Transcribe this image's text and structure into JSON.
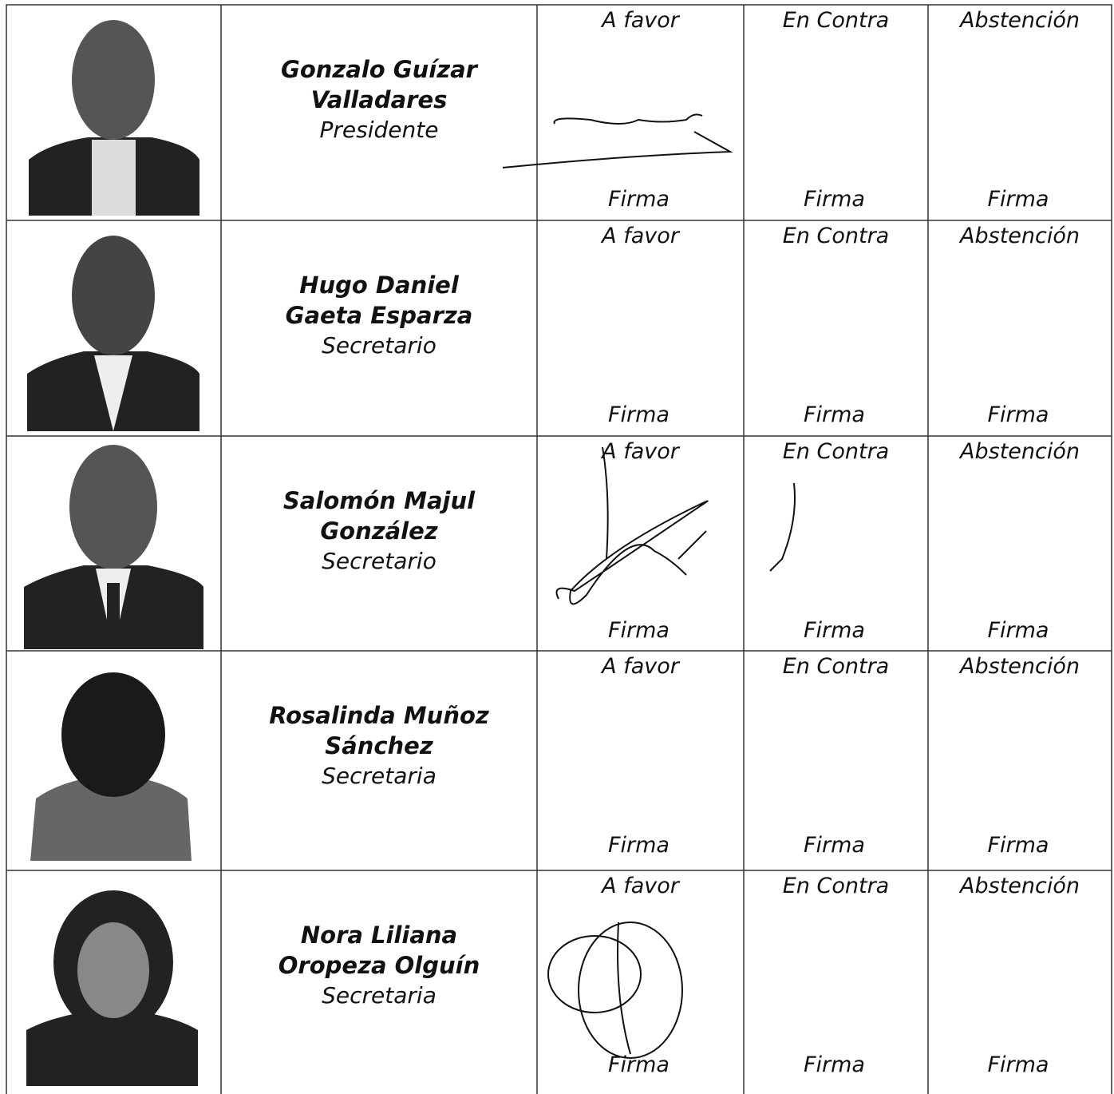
{
  "table": {
    "rows": [
      {
        "name": [
          "Gonzalo Guízar",
          "Valladares"
        ],
        "role": "Presidente",
        "votes": [
          {
            "label": "A favor",
            "sign": "Firma"
          },
          {
            "label": "En Contra",
            "sign": "Firma"
          },
          {
            "label": "Abstención",
            "sign": "Firma"
          }
        ]
      },
      {
        "name": [
          "Hugo Daniel",
          "Gaeta Esparza"
        ],
        "role": "Secretario",
        "votes": [
          {
            "label": "A favor",
            "sign": "Firma"
          },
          {
            "label": "En Contra",
            "sign": "Firma"
          },
          {
            "label": "Abstención",
            "sign": "Firma"
          }
        ]
      },
      {
        "name": [
          "Salomón Majul",
          "González"
        ],
        "role": "Secretario",
        "votes": [
          {
            "label": "A favor",
            "sign": "Firma"
          },
          {
            "label": "En Contra",
            "sign": "Firma"
          },
          {
            "label": "Abstención",
            "sign": "Firma"
          }
        ]
      },
      {
        "name": [
          "Rosalinda Muñoz",
          "Sánchez"
        ],
        "role": "Secretaria",
        "votes": [
          {
            "label": "A favor",
            "sign": "Firma"
          },
          {
            "label": "En Contra",
            "sign": "Firma"
          },
          {
            "label": "Abstención",
            "sign": "Firma"
          }
        ]
      },
      {
        "name": [
          "Nora Liliana",
          "Oropeza Olguín"
        ],
        "role": "Secretaria",
        "votes": [
          {
            "label": "A favor",
            "sign": "Firma"
          },
          {
            "label": "En Contra",
            "sign": "Firma"
          },
          {
            "label": "Abstención",
            "sign": "Firma"
          }
        ]
      }
    ]
  }
}
